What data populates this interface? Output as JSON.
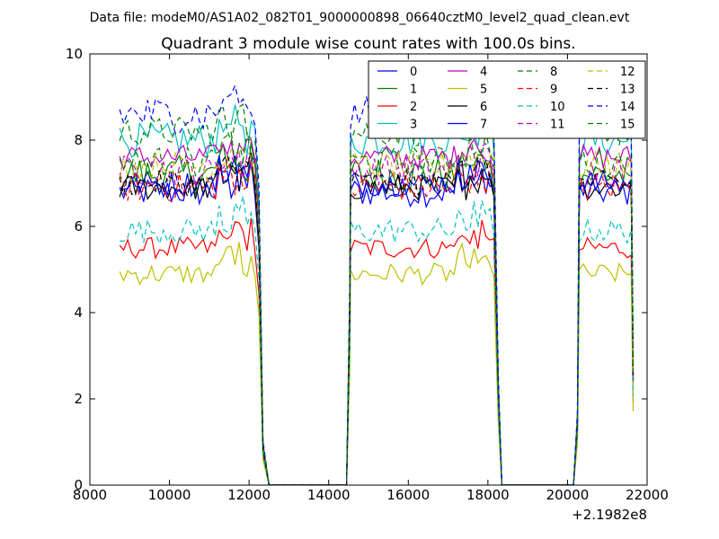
{
  "supertitle": "Data file: modeM0/AS1A02_082T01_9000000898_06640cztM0_level2_quad_clean.evt",
  "chart_data": {
    "type": "line",
    "title": "Quadrant 3 module wise count rates with 100.0s bins.",
    "xlabel": "",
    "ylabel": "",
    "x_offset_label": "+2.1982e8",
    "xlim": [
      8000,
      22000
    ],
    "ylim": [
      0,
      10
    ],
    "xticks": [
      8000,
      10000,
      12000,
      14000,
      16000,
      18000,
      20000,
      22000
    ],
    "yticks": [
      0,
      2,
      4,
      6,
      8,
      10
    ],
    "grid": false,
    "legend_position": "top-right",
    "legend_columns": 4,
    "segments": [
      {
        "start": 8750,
        "end": 12150
      },
      {
        "start": 14550,
        "end": 18200
      },
      {
        "start": 20300,
        "end": 21600
      }
    ],
    "edges": {
      "fall_1": [
        12150,
        12500
      ],
      "rise_2": [
        14450,
        14650
      ],
      "fall_2": [
        18200,
        18350
      ],
      "rise_3": [
        20150,
        20400
      ]
    },
    "series": [
      {
        "name": "0",
        "color": "#0000ff",
        "dash": "solid",
        "level": 6.8,
        "noise": 0.35
      },
      {
        "name": "1",
        "color": "#008000",
        "dash": "solid",
        "level": 7.2,
        "noise": 0.45
      },
      {
        "name": "2",
        "color": "#ff0000",
        "dash": "solid",
        "level": 5.5,
        "noise": 0.25
      },
      {
        "name": "3",
        "color": "#00bfbf",
        "dash": "solid",
        "level": 8.0,
        "noise": 0.4
      },
      {
        "name": "4",
        "color": "#bf00bf",
        "dash": "solid",
        "level": 7.6,
        "noise": 0.3
      },
      {
        "name": "5",
        "color": "#bfbf00",
        "dash": "solid",
        "level": 4.9,
        "noise": 0.25
      },
      {
        "name": "6",
        "color": "#000000",
        "dash": "solid",
        "level": 6.9,
        "noise": 0.3
      },
      {
        "name": "7",
        "color": "#0000ff",
        "dash": "solid",
        "level": 7.0,
        "noise": 0.3
      },
      {
        "name": "8",
        "color": "#008000",
        "dash": "dashed",
        "level": 8.2,
        "noise": 0.35
      },
      {
        "name": "9",
        "color": "#ff0000",
        "dash": "dashed",
        "level": 6.9,
        "noise": 0.35
      },
      {
        "name": "10",
        "color": "#00bfbf",
        "dash": "dashed",
        "level": 5.9,
        "noise": 0.3
      },
      {
        "name": "11",
        "color": "#bf00bf",
        "dash": "dashed",
        "level": 7.3,
        "noise": 0.35
      },
      {
        "name": "12",
        "color": "#bfbf00",
        "dash": "dashed",
        "level": 7.4,
        "noise": 0.35
      },
      {
        "name": "13",
        "color": "#000000",
        "dash": "dashed",
        "level": 7.0,
        "noise": 0.3
      },
      {
        "name": "14",
        "color": "#0000ff",
        "dash": "dashed",
        "level": 8.6,
        "noise": 0.45
      },
      {
        "name": "15",
        "color": "#008000",
        "dash": "dashed",
        "level": 7.5,
        "noise": 0.35
      }
    ]
  }
}
